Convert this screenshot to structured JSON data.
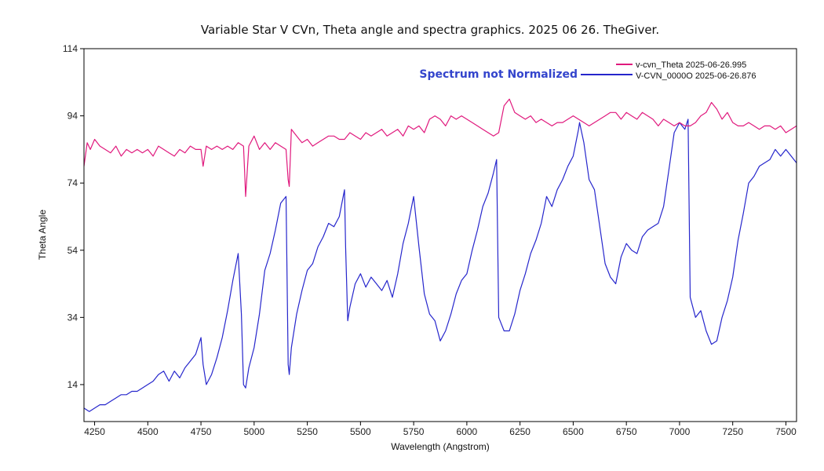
{
  "chart_data": {
    "type": "line",
    "title": "Variable Star V CVn, Theta angle and spectra graphics. 2025 06 26. TheGiver.",
    "xlabel": "Wavelength (Angstrom)",
    "ylabel": "Theta Angle",
    "xlim": [
      4200,
      7550
    ],
    "ylim": [
      3,
      114
    ],
    "x_ticks": [
      4250,
      4500,
      4750,
      5000,
      5250,
      5500,
      5750,
      6000,
      6250,
      6500,
      6750,
      7000,
      7250,
      7500
    ],
    "y_ticks": [
      14,
      34,
      54,
      74,
      94,
      114
    ],
    "grid": false,
    "legend_position": "top-right",
    "annotation": {
      "text": "Spectrum not Normalized",
      "color": "#3344cc"
    },
    "series": [
      {
        "name": "v-cvn_Theta  2025-06-26.995",
        "color": "#e0197d",
        "x": [
          4200,
          4215,
          4230,
          4250,
          4275,
          4300,
          4325,
          4350,
          4375,
          4400,
          4425,
          4450,
          4475,
          4500,
          4525,
          4550,
          4575,
          4600,
          4625,
          4650,
          4675,
          4700,
          4725,
          4750,
          4760,
          4775,
          4800,
          4825,
          4850,
          4875,
          4900,
          4925,
          4950,
          4955,
          4960,
          4975,
          5000,
          5025,
          5050,
          5075,
          5100,
          5125,
          5150,
          5160,
          5165,
          5175,
          5200,
          5225,
          5250,
          5275,
          5300,
          5325,
          5350,
          5375,
          5400,
          5425,
          5450,
          5475,
          5500,
          5525,
          5550,
          5575,
          5600,
          5625,
          5650,
          5675,
          5700,
          5725,
          5750,
          5775,
          5800,
          5825,
          5850,
          5875,
          5900,
          5925,
          5950,
          5975,
          6000,
          6025,
          6050,
          6075,
          6100,
          6125,
          6150,
          6175,
          6200,
          6225,
          6250,
          6275,
          6300,
          6325,
          6350,
          6375,
          6400,
          6425,
          6450,
          6475,
          6500,
          6525,
          6550,
          6575,
          6600,
          6625,
          6650,
          6675,
          6700,
          6725,
          6750,
          6775,
          6800,
          6825,
          6850,
          6875,
          6900,
          6925,
          6950,
          6975,
          7000,
          7025,
          7050,
          7075,
          7100,
          7125,
          7150,
          7175,
          7200,
          7225,
          7250,
          7275,
          7300,
          7325,
          7350,
          7375,
          7400,
          7425,
          7450,
          7475,
          7500,
          7525,
          7550
        ],
        "values": [
          79,
          86,
          84,
          87,
          85,
          84,
          83,
          85,
          82,
          84,
          83,
          84,
          83,
          84,
          82,
          85,
          84,
          83,
          82,
          84,
          83,
          85,
          84,
          84,
          79,
          85,
          84,
          85,
          84,
          85,
          84,
          86,
          85,
          78,
          70,
          85,
          88,
          84,
          86,
          84,
          86,
          85,
          84,
          75,
          73,
          90,
          88,
          86,
          87,
          85,
          86,
          87,
          88,
          88,
          87,
          87,
          89,
          88,
          87,
          89,
          88,
          89,
          90,
          88,
          89,
          90,
          88,
          91,
          90,
          91,
          89,
          93,
          94,
          93,
          91,
          94,
          93,
          94,
          93,
          92,
          91,
          90,
          89,
          88,
          89,
          97,
          99,
          95,
          94,
          93,
          94,
          92,
          93,
          92,
          91,
          92,
          92,
          93,
          94,
          93,
          92,
          91,
          92,
          93,
          94,
          95,
          95,
          93,
          95,
          94,
          93,
          95,
          94,
          93,
          91,
          93,
          92,
          91,
          92,
          91,
          91,
          92,
          94,
          95,
          98,
          96,
          93,
          95,
          92,
          91,
          91,
          92,
          91,
          90,
          91,
          91,
          90,
          91,
          89,
          90,
          91
        ]
      },
      {
        "name": "V-CVN_0000O  2025-06-26.876",
        "color": "#2626cc",
        "x": [
          4200,
          4225,
          4250,
          4275,
          4300,
          4325,
          4350,
          4375,
          4400,
          4425,
          4450,
          4475,
          4500,
          4525,
          4550,
          4575,
          4600,
          4625,
          4650,
          4675,
          4700,
          4725,
          4750,
          4760,
          4775,
          4800,
          4825,
          4850,
          4875,
          4900,
          4925,
          4940,
          4950,
          4960,
          4975,
          5000,
          5025,
          5050,
          5075,
          5100,
          5125,
          5150,
          5160,
          5165,
          5175,
          5200,
          5225,
          5250,
          5275,
          5300,
          5325,
          5350,
          5375,
          5400,
          5425,
          5430,
          5440,
          5450,
          5475,
          5500,
          5525,
          5550,
          5575,
          5600,
          5625,
          5650,
          5675,
          5700,
          5725,
          5750,
          5775,
          5800,
          5825,
          5850,
          5875,
          5900,
          5925,
          5950,
          5975,
          6000,
          6025,
          6050,
          6075,
          6100,
          6125,
          6140,
          6150,
          6175,
          6200,
          6225,
          6250,
          6275,
          6300,
          6325,
          6350,
          6375,
          6400,
          6425,
          6450,
          6475,
          6500,
          6525,
          6530,
          6550,
          6575,
          6600,
          6625,
          6650,
          6675,
          6700,
          6725,
          6750,
          6775,
          6800,
          6825,
          6850,
          6875,
          6900,
          6925,
          6950,
          6975,
          7000,
          7025,
          7040,
          7050,
          7075,
          7100,
          7125,
          7150,
          7175,
          7200,
          7225,
          7250,
          7275,
          7300,
          7325,
          7350,
          7375,
          7400,
          7425,
          7450,
          7475,
          7500,
          7525,
          7550
        ],
        "values": [
          7,
          6,
          7,
          8,
          8,
          9,
          10,
          11,
          11,
          12,
          12,
          13,
          14,
          15,
          17,
          18,
          15,
          18,
          16,
          19,
          21,
          23,
          28,
          20,
          14,
          17,
          22,
          28,
          36,
          45,
          53,
          35,
          14,
          13,
          19,
          25,
          35,
          48,
          53,
          60,
          68,
          70,
          20,
          17,
          25,
          35,
          42,
          48,
          50,
          55,
          58,
          62,
          61,
          64,
          72,
          55,
          33,
          37,
          44,
          47,
          43,
          46,
          44,
          42,
          45,
          40,
          47,
          56,
          62,
          70,
          55,
          41,
          35,
          33,
          27,
          30,
          35,
          41,
          45,
          47,
          54,
          60,
          67,
          71,
          77,
          81,
          34,
          30,
          30,
          35,
          42,
          47,
          53,
          57,
          62,
          70,
          67,
          72,
          75,
          79,
          82,
          90,
          92,
          86,
          75,
          72,
          61,
          50,
          46,
          44,
          52,
          56,
          54,
          53,
          58,
          60,
          61,
          62,
          67,
          78,
          89,
          92,
          90,
          93,
          40,
          34,
          36,
          30,
          26,
          27,
          34,
          39,
          46,
          57,
          65,
          74,
          76,
          79,
          80,
          81,
          84,
          82,
          84,
          82,
          80
        ]
      }
    ]
  }
}
